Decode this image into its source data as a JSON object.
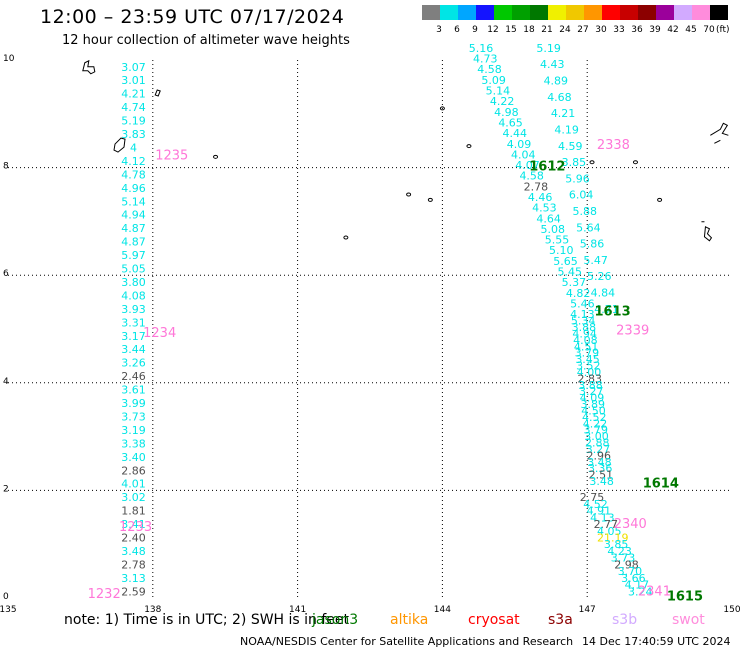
{
  "header": {
    "title": "12:00 – 23:59 UTC 07/17/2024",
    "subtitle": "12 hour collection of altimeter wave heights"
  },
  "legend": {
    "unit": "(ft)",
    "bins": [
      {
        "label": "3",
        "color": "#7f7f7f"
      },
      {
        "label": "6",
        "color": "#00e5e5"
      },
      {
        "label": "9",
        "color": "#00a6ff"
      },
      {
        "label": "12",
        "color": "#1414ff"
      },
      {
        "label": "15",
        "color": "#00c800"
      },
      {
        "label": "18",
        "color": "#00a000"
      },
      {
        "label": "21",
        "color": "#007800"
      },
      {
        "label": "24",
        "color": "#f0f000"
      },
      {
        "label": "27",
        "color": "#f0c800"
      },
      {
        "label": "30",
        "color": "#ff9600"
      },
      {
        "label": "33",
        "color": "#ff0000"
      },
      {
        "label": "36",
        "color": "#c80000"
      },
      {
        "label": "39",
        "color": "#8c0000"
      },
      {
        "label": "42",
        "color": "#9b009b"
      },
      {
        "label": "45",
        "color": "#d2aaff"
      },
      {
        "label": "70",
        "color": "#ff8cdc"
      },
      {
        "label": "",
        "color": "#000000"
      }
    ]
  },
  "map": {
    "lon_range": [
      135,
      150
    ],
    "lat_range": [
      0,
      10
    ],
    "lon_ticks": [
      "135",
      "138",
      "141",
      "144",
      "147",
      "150"
    ],
    "lat_ticks": [
      "10",
      "8",
      "6",
      "4",
      "2",
      "0"
    ],
    "grid": true,
    "colors": {
      "cyan": "#00e5e5",
      "gray": "#505050",
      "yellow": "#f0e000",
      "pink": "#ff77d8",
      "green": "#007800"
    },
    "tracks": [
      {
        "id": "left-track",
        "lon": 137.6,
        "lat_start": 9.8,
        "lat_end": 0.05,
        "values": [
          "3.07",
          "3.01",
          "4.21",
          "4.74",
          "5.19",
          "3.83",
          "4",
          "4.12",
          "4.78",
          "4.96",
          "5.14",
          "4.94",
          "4.87",
          "4.87",
          "5.97",
          "5.05",
          "3.80",
          "4.08",
          "3.93",
          "3.31",
          "3.17",
          "3.44",
          "3.26",
          "2.46",
          "3.61",
          "3.99",
          "3.73",
          "3.19",
          "3.38",
          "3.40",
          "2.86",
          "4.01",
          "3.02",
          "1.81",
          "3.41",
          "2.40",
          "3.48",
          "2.78",
          "3.13",
          "2.59"
        ],
        "colors": [
          "c",
          "c",
          "c",
          "c",
          "c",
          "c",
          "c",
          "c",
          "c",
          "c",
          "c",
          "c",
          "c",
          "c",
          "c",
          "c",
          "c",
          "c",
          "c",
          "c",
          "c",
          "c",
          "c",
          "g",
          "c",
          "c",
          "c",
          "c",
          "c",
          "c",
          "g",
          "c",
          "c",
          "g",
          "c",
          "g",
          "c",
          "g",
          "c",
          "g"
        ]
      },
      {
        "id": "track-1612",
        "lon_start": 144.8,
        "lon_end": 146.9,
        "lat_start": 10.15,
        "lat_end": 5.4,
        "values": [
          "5.16",
          "4.73",
          "4.58",
          "5.09",
          "5.14",
          "4.22",
          "4.98",
          "4.65",
          "4.44",
          "4.09",
          "4.04",
          "4.07",
          "4.58",
          "2.78",
          "4.46",
          "4.53",
          "4.64",
          "5.08",
          "5.55",
          "5.10",
          "5.65",
          "5.45",
          "5.37",
          "4.82",
          "5.46"
        ],
        "colors": [
          "c",
          "c",
          "c",
          "c",
          "c",
          "c",
          "c",
          "c",
          "c",
          "c",
          "c",
          "c",
          "c",
          "g",
          "c",
          "c",
          "c",
          "c",
          "c",
          "c",
          "c",
          "c",
          "c",
          "c",
          "c"
        ]
      },
      {
        "id": "track-2338",
        "lon_start": 146.2,
        "lon_end": 147.4,
        "lat_start": 10.15,
        "lat_end": 5.3,
        "values": [
          "5.19",
          "4.43",
          "4.89",
          "4.68",
          "4.21",
          "4.19",
          "4.59",
          "3.85",
          "5.96",
          "6.04",
          "5.88",
          "5.64",
          "5.86",
          "5.47",
          "5.26",
          "4.84",
          "4.71"
        ],
        "colors": [
          "c",
          "c",
          "c",
          "c",
          "c",
          "c",
          "c",
          "c",
          "c",
          "c",
          "c",
          "c",
          "c",
          "c",
          "c",
          "c",
          "c"
        ]
      },
      {
        "id": "track-1613",
        "lon_start": 146.9,
        "lon_end": 147.3,
        "lat_start": 5.2,
        "lat_end": 2.1,
        "values": [
          "4.13",
          "5.34",
          "3.88",
          "4.94",
          "4.08",
          "4.51",
          "3.79",
          "3.45",
          "3.52",
          "4.00",
          "2.83",
          "3.88",
          "3.27",
          "4.09",
          "3.89",
          "4.50",
          "4.52",
          "4.22",
          "3.79",
          "3.00",
          "2.88",
          "3.27",
          "2.96",
          "3.48",
          "3.36",
          "2.51",
          "3.48"
        ],
        "colors": [
          "c",
          "c",
          "c",
          "c",
          "c",
          "c",
          "c",
          "c",
          "c",
          "c",
          "g",
          "c",
          "c",
          "c",
          "c",
          "c",
          "c",
          "c",
          "c",
          "c",
          "c",
          "c",
          "g",
          "c",
          "c",
          "g",
          "c"
        ]
      },
      {
        "id": "track-1614",
        "lon_start": 147.1,
        "lon_end": 148.1,
        "lat_start": 1.8,
        "lat_end": 0.05,
        "values": [
          "2.75",
          "4.52",
          "4.91",
          "4.13",
          "2.77",
          "4.05",
          "21.19",
          "3.85",
          "4.23",
          "3.73",
          "2.98",
          "3.70",
          "3.66",
          "4.17",
          "3.24"
        ],
        "colors": [
          "g",
          "c",
          "c",
          "c",
          "g",
          "c",
          "y",
          "c",
          "c",
          "c",
          "g",
          "c",
          "c",
          "c",
          "c"
        ]
      }
    ],
    "track_labels": [
      {
        "text": "1235",
        "lon": 138.05,
        "lat": 8.15,
        "color": "pink"
      },
      {
        "text": "1234",
        "lon": 137.8,
        "lat": 4.85,
        "color": "pink"
      },
      {
        "text": "1233",
        "lon": 137.3,
        "lat": 1.25,
        "color": "pink"
      },
      {
        "text": "1232",
        "lon": 136.65,
        "lat": 0.0,
        "color": "pink"
      },
      {
        "text": "1612",
        "lon": 145.8,
        "lat": 7.95,
        "color": "green"
      },
      {
        "text": "2338",
        "lon": 147.2,
        "lat": 8.35,
        "color": "pink"
      },
      {
        "text": "1613",
        "lon": 147.15,
        "lat": 5.25,
        "color": "green"
      },
      {
        "text": "2339",
        "lon": 147.6,
        "lat": 4.9,
        "color": "pink"
      },
      {
        "text": "1614",
        "lon": 148.15,
        "lat": 2.05,
        "color": "green"
      },
      {
        "text": "2340",
        "lon": 147.55,
        "lat": 1.3,
        "color": "pink"
      },
      {
        "text": "2341",
        "lon": 148.05,
        "lat": 0.05,
        "color": "pink"
      },
      {
        "text": "1615",
        "lon": 148.65,
        "lat": -0.05,
        "color": "green"
      }
    ],
    "islands": [
      {
        "lon": 136.55,
        "lat": 9.8,
        "kind": "hook"
      },
      {
        "lon": 138.05,
        "lat": 9.35,
        "kind": "small"
      },
      {
        "lon": 137.3,
        "lat": 8.4,
        "kind": "big"
      },
      {
        "lon": 139.3,
        "lat": 8.2,
        "kind": "dot"
      },
      {
        "lon": 144.55,
        "lat": 8.4,
        "kind": "dot"
      },
      {
        "lon": 144.0,
        "lat": 9.1,
        "kind": "dot"
      },
      {
        "lon": 143.75,
        "lat": 7.4,
        "kind": "dot"
      },
      {
        "lon": 143.3,
        "lat": 7.5,
        "kind": "dot"
      },
      {
        "lon": 142.0,
        "lat": 6.7,
        "kind": "dot"
      },
      {
        "lon": 147.1,
        "lat": 8.1,
        "kind": "dot"
      },
      {
        "lon": 148.0,
        "lat": 8.1,
        "kind": "dot"
      },
      {
        "lon": 149.45,
        "lat": 6.9,
        "kind": "cluster"
      },
      {
        "lon": 149.8,
        "lat": 8.6,
        "kind": "hook2"
      },
      {
        "lon": 148.5,
        "lat": 7.4,
        "kind": "dot"
      }
    ]
  },
  "footer": {
    "note": "note: 1) Time is in UTC; 2) SWH is in feet",
    "satellites": [
      {
        "name": "jason3",
        "color": "#007800"
      },
      {
        "name": "altika",
        "color": "#ff9600"
      },
      {
        "name": "cryosat",
        "color": "#ff0000"
      },
      {
        "name": "s3a",
        "color": "#8c0000"
      },
      {
        "name": "s3b",
        "color": "#d2aaff"
      },
      {
        "name": "swot",
        "color": "#ff8cdc"
      }
    ],
    "credit": "NOAA/NESDIS Center for Satellite Applications and Research",
    "timestamp": "14 Dec 17:40:59 UTC 2024"
  }
}
